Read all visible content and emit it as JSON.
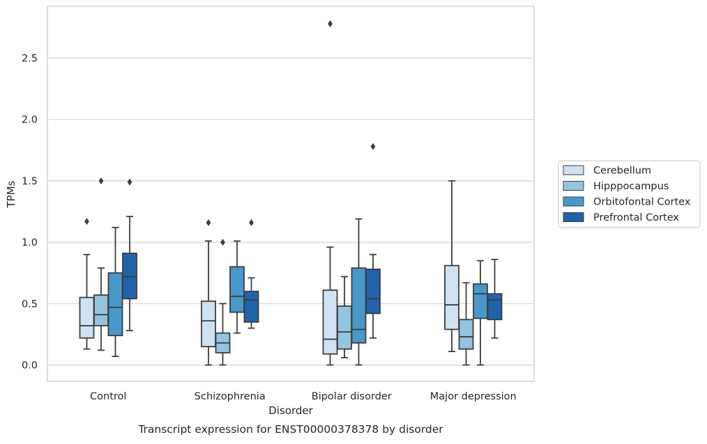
{
  "chart_data": {
    "type": "box",
    "caption": "Transcript expression for ENST00000378378 by disorder",
    "xlabel": "Disorder",
    "ylabel": "TPMs",
    "ylim": [
      -0.13,
      2.92
    ],
    "yticks": [
      0.0,
      0.5,
      1.0,
      1.5,
      2.0,
      2.5
    ],
    "ytick_labels": [
      "0.0",
      "0.5",
      "1.0",
      "1.5",
      "2.0",
      "2.5"
    ],
    "grid": "horizontal",
    "legend_position": "right",
    "categories": [
      "Control",
      "Schizophrenia",
      "Bipolar disorder",
      "Major depression"
    ],
    "series": [
      {
        "name": "Cerebellum",
        "color": "#d0e1f2",
        "boxes": [
          {
            "whislo": 0.13,
            "q1": 0.22,
            "med": 0.32,
            "q3": 0.55,
            "whishi": 0.9,
            "fliers": [
              1.17
            ]
          },
          {
            "whislo": 0.0,
            "q1": 0.15,
            "med": 0.36,
            "q3": 0.52,
            "whishi": 1.01,
            "fliers": [
              1.16
            ]
          },
          {
            "whislo": 0.0,
            "q1": 0.09,
            "med": 0.21,
            "q3": 0.61,
            "whishi": 0.96,
            "fliers": [
              2.78
            ]
          },
          {
            "whislo": 0.11,
            "q1": 0.29,
            "med": 0.49,
            "q3": 0.81,
            "whishi": 1.5,
            "fliers": []
          }
        ]
      },
      {
        "name": "Hipppocampus",
        "color": "#94c4df",
        "boxes": [
          {
            "whislo": 0.12,
            "q1": 0.32,
            "med": 0.41,
            "q3": 0.57,
            "whishi": 0.79,
            "fliers": [
              1.5
            ]
          },
          {
            "whislo": 0.0,
            "q1": 0.1,
            "med": 0.18,
            "q3": 0.26,
            "whishi": 0.5,
            "fliers": [
              1.0
            ]
          },
          {
            "whislo": 0.06,
            "q1": 0.13,
            "med": 0.27,
            "q3": 0.48,
            "whishi": 0.72,
            "fliers": []
          },
          {
            "whislo": 0.0,
            "q1": 0.13,
            "med": 0.23,
            "q3": 0.37,
            "whishi": 0.67,
            "fliers": []
          }
        ]
      },
      {
        "name": "Orbitofontal Cortex",
        "color": "#4a98c9",
        "boxes": [
          {
            "whislo": 0.07,
            "q1": 0.24,
            "med": 0.47,
            "q3": 0.75,
            "whishi": 1.12,
            "fliers": []
          },
          {
            "whislo": 0.26,
            "q1": 0.43,
            "med": 0.56,
            "q3": 0.8,
            "whishi": 1.01,
            "fliers": []
          },
          {
            "whislo": 0.0,
            "q1": 0.18,
            "med": 0.29,
            "q3": 0.79,
            "whishi": 1.19,
            "fliers": []
          },
          {
            "whislo": 0.0,
            "q1": 0.38,
            "med": 0.58,
            "q3": 0.66,
            "whishi": 0.85,
            "fliers": []
          }
        ]
      },
      {
        "name": "Prefrontal Cortex",
        "color": "#2163aa",
        "boxes": [
          {
            "whislo": 0.28,
            "q1": 0.54,
            "med": 0.72,
            "q3": 0.91,
            "whishi": 1.21,
            "fliers": [
              1.49
            ]
          },
          {
            "whislo": 0.3,
            "q1": 0.35,
            "med": 0.53,
            "q3": 0.6,
            "whishi": 0.71,
            "fliers": [
              1.16
            ]
          },
          {
            "whislo": 0.22,
            "q1": 0.42,
            "med": 0.54,
            "q3": 0.78,
            "whishi": 0.9,
            "fliers": [
              1.78
            ]
          },
          {
            "whislo": 0.22,
            "q1": 0.37,
            "med": 0.53,
            "q3": 0.58,
            "whishi": 0.86,
            "fliers": []
          }
        ]
      }
    ]
  }
}
